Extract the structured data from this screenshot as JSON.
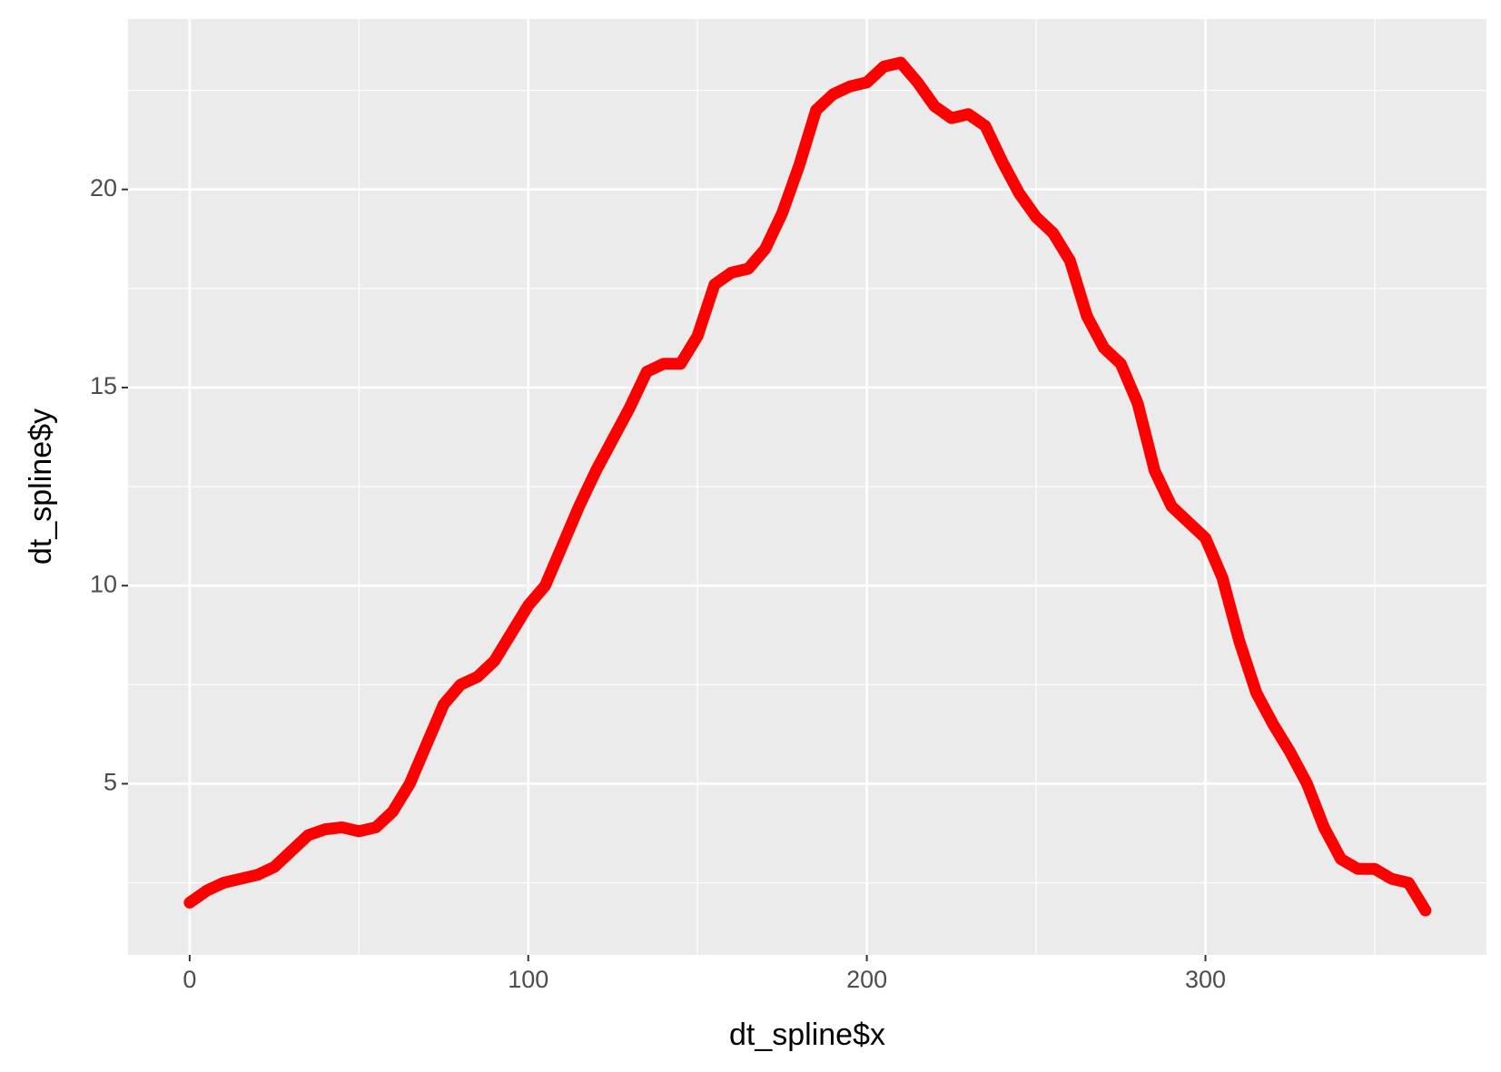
{
  "chart_data": {
    "type": "line",
    "x_label": "dt_spline$x",
    "y_label": "dt_spline$y",
    "x": [
      0,
      5,
      10,
      15,
      20,
      25,
      30,
      35,
      40,
      45,
      50,
      55,
      60,
      65,
      70,
      75,
      80,
      85,
      90,
      95,
      100,
      105,
      110,
      115,
      120,
      125,
      130,
      135,
      140,
      145,
      150,
      155,
      160,
      165,
      170,
      175,
      180,
      185,
      190,
      195,
      200,
      205,
      210,
      215,
      220,
      225,
      230,
      235,
      240,
      245,
      250,
      255,
      260,
      265,
      270,
      275,
      280,
      285,
      290,
      295,
      300,
      305,
      310,
      315,
      320,
      325,
      330,
      335,
      340,
      345,
      350,
      355,
      360,
      365
    ],
    "series": [
      {
        "color": "#ff0000",
        "values": [
          2.0,
          2.3,
          2.5,
          2.6,
          2.7,
          2.9,
          3.3,
          3.7,
          3.85,
          3.9,
          3.8,
          3.9,
          4.3,
          5.0,
          6.0,
          7.0,
          7.5,
          7.7,
          8.1,
          8.8,
          9.5,
          10.0,
          11.0,
          12.0,
          12.9,
          13.7,
          14.5,
          15.4,
          15.6,
          15.6,
          16.3,
          17.6,
          17.9,
          18.0,
          18.5,
          19.4,
          20.6,
          22.0,
          22.4,
          22.6,
          22.7,
          23.1,
          23.2,
          22.7,
          22.1,
          21.8,
          21.9,
          21.6,
          20.7,
          19.9,
          19.3,
          18.9,
          18.2,
          16.8,
          16.0,
          15.6,
          14.6,
          12.9,
          12.0,
          11.6,
          11.2,
          10.2,
          8.6,
          7.3,
          6.5,
          5.8,
          5.0,
          3.9,
          3.1,
          2.85,
          2.85,
          2.6,
          2.5,
          1.8
        ]
      }
    ],
    "xlim": [
      -18.2,
      383
    ],
    "ylim": [
      0.68,
      24.3
    ],
    "xticks": [
      0,
      100,
      200,
      300
    ],
    "yticks": [
      5,
      10,
      15,
      20
    ],
    "grid": true,
    "minor_grid": true
  }
}
